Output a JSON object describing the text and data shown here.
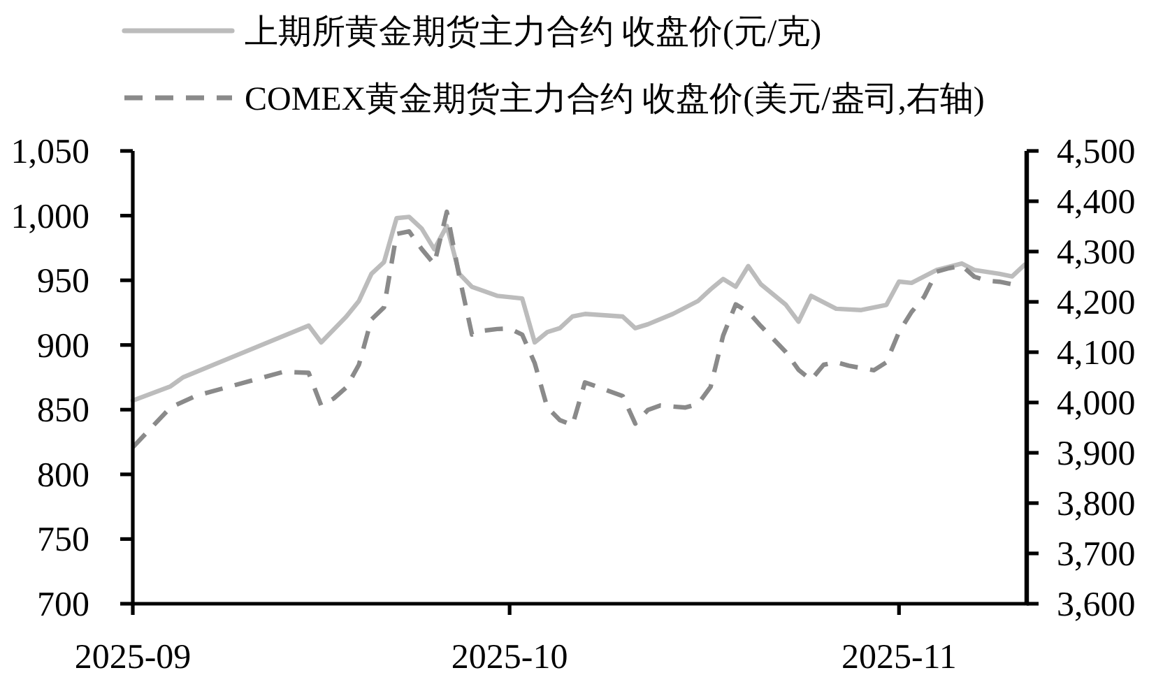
{
  "chart_data": {
    "type": "line",
    "legend": "top",
    "xlim": [
      "2025-09-01",
      "2025-11-11"
    ],
    "xticks": [
      "2025-09",
      "2025-10",
      "2025-11"
    ],
    "ylim": [
      700,
      1050
    ],
    "yticks": [
      700,
      750,
      800,
      850,
      900,
      950,
      {
        "value": 1000,
        "label": "1,000"
      },
      {
        "value": 1050,
        "label": "1,050"
      }
    ],
    "y2lim": [
      3600,
      4500
    ],
    "y2ticks": [
      {
        "value": 3600,
        "label": "3,600"
      },
      {
        "value": 3700,
        "label": "3,700"
      },
      {
        "value": 3800,
        "label": "3,800"
      },
      {
        "value": 3900,
        "label": "3,900"
      },
      {
        "value": 4000,
        "label": "4,000"
      },
      {
        "value": 4100,
        "label": "4,100"
      },
      {
        "value": 4200,
        "label": "4,200"
      },
      {
        "value": 4300,
        "label": "4,300"
      },
      {
        "value": 4400,
        "label": "4,400"
      },
      {
        "value": 4500,
        "label": "4,500"
      }
    ],
    "series": [
      {
        "name": "上期所黄金期货主力合约 收盘价(元/克)",
        "color": "#bcbcbc",
        "line_style": "solid",
        "x": [
          "2025-09-01",
          "2025-09-04",
          "2025-09-05",
          "2025-09-15",
          "2025-09-16",
          "2025-09-18",
          "2025-09-19",
          "2025-09-20",
          "2025-09-21",
          "2025-09-22",
          "2025-09-23",
          "2025-09-24",
          "2025-09-25",
          "2025-09-26",
          "2025-09-27",
          "2025-09-28",
          "2025-09-30",
          "2025-10-02",
          "2025-10-03",
          "2025-10-04",
          "2025-10-05",
          "2025-10-06",
          "2025-10-07",
          "2025-10-10",
          "2025-10-11",
          "2025-10-12",
          "2025-10-14",
          "2025-10-16",
          "2025-10-17",
          "2025-10-18",
          "2025-10-19",
          "2025-10-20",
          "2025-10-21",
          "2025-10-23",
          "2025-10-24",
          "2025-10-25",
          "2025-10-27",
          "2025-10-29",
          "2025-10-31",
          "2025-11-01",
          "2025-11-02",
          "2025-11-04",
          "2025-11-06",
          "2025-11-07",
          "2025-11-09",
          "2025-11-10",
          "2025-11-11"
        ],
        "values": [
          857,
          868,
          875,
          915,
          902,
          922,
          934,
          955,
          964,
          998,
          999,
          990,
          974,
          992,
          955,
          945,
          938,
          936,
          902,
          910,
          913,
          922,
          924,
          922,
          913,
          916,
          924,
          934,
          943,
          951,
          945,
          961,
          947,
          931,
          918,
          938,
          928,
          927,
          931,
          949,
          948,
          958,
          963,
          958,
          955,
          953,
          962
        ]
      },
      {
        "name": "COMEX黄金期货主力合约 收盘价(美元/盎司,右轴)",
        "color": "#8a8a8a",
        "line_style": "dashed",
        "axis": "y2",
        "x": [
          "2025-09-01",
          "2025-09-04",
          "2025-09-06",
          "2025-09-13",
          "2025-09-15",
          "2025-09-16",
          "2025-09-17",
          "2025-09-18",
          "2025-09-19",
          "2025-09-20",
          "2025-09-21",
          "2025-09-22",
          "2025-09-23",
          "2025-09-24",
          "2025-09-25",
          "2025-09-26",
          "2025-09-27",
          "2025-09-28",
          "2025-09-29",
          "2025-09-30",
          "2025-10-01",
          "2025-10-02",
          "2025-10-03",
          "2025-10-04",
          "2025-10-05",
          "2025-10-06",
          "2025-10-07",
          "2025-10-09",
          "2025-10-10",
          "2025-10-11",
          "2025-10-12",
          "2025-10-13",
          "2025-10-15",
          "2025-10-16",
          "2025-10-17",
          "2025-10-18",
          "2025-10-19",
          "2025-10-20",
          "2025-10-21",
          "2025-10-23",
          "2025-10-24",
          "2025-10-25",
          "2025-10-26",
          "2025-10-27",
          "2025-10-28",
          "2025-10-30",
          "2025-10-31",
          "2025-11-01",
          "2025-11-02",
          "2025-11-03",
          "2025-11-04",
          "2025-11-05",
          "2025-11-06",
          "2025-11-07",
          "2025-11-08",
          "2025-11-09",
          "2025-11-10"
        ],
        "values": [
          3911,
          3990,
          4013,
          4061,
          4059,
          3994,
          4008,
          4030,
          4075,
          4165,
          4189,
          4335,
          4340,
          4305,
          4275,
          4379,
          4250,
          4135,
          4143,
          4146,
          4147,
          4135,
          4078,
          3990,
          3965,
          3955,
          4040,
          4022,
          4013,
          3958,
          3985,
          3994,
          3990,
          3997,
          4031,
          4133,
          4195,
          4180,
          4152,
          4100,
          4065,
          4045,
          4075,
          4080,
          4073,
          4064,
          4080,
          4140,
          4180,
          4210,
          4260,
          4267,
          4272,
          4250,
          4242,
          4240,
          4235
        ]
      }
    ]
  }
}
